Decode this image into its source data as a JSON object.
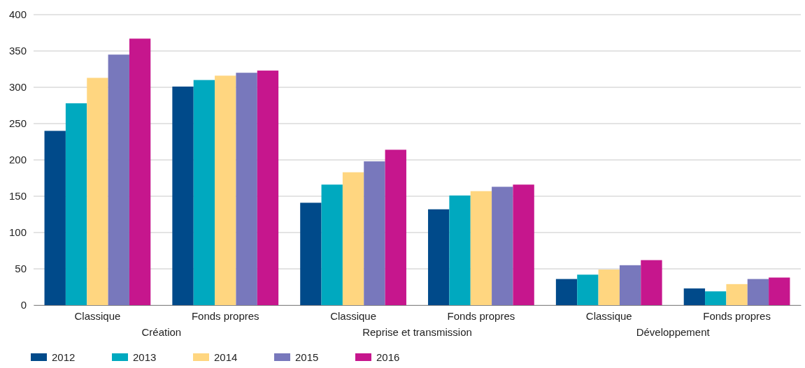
{
  "chart_data": {
    "type": "bar",
    "categories": [
      "Classique",
      "Fonds propres",
      "Classique",
      "Fonds propres",
      "Classique",
      "Fonds propres"
    ],
    "series": [
      {
        "name": "2012",
        "color": "#004a8a",
        "values": [
          240,
          301,
          141,
          132,
          36,
          23
        ]
      },
      {
        "name": "2013",
        "color": "#00a9bf",
        "values": [
          278,
          310,
          166,
          151,
          42,
          19
        ]
      },
      {
        "name": "2014",
        "color": "#ffd680",
        "values": [
          313,
          316,
          183,
          157,
          49,
          29
        ]
      },
      {
        "name": "2015",
        "color": "#7878bc",
        "values": [
          345,
          320,
          198,
          163,
          55,
          36
        ]
      },
      {
        "name": "2016",
        "color": "#c6168d",
        "values": [
          367,
          323,
          214,
          166,
          62,
          38
        ]
      }
    ],
    "annotations": [
      "Création",
      "Reprise et transmission",
      "Développement"
    ],
    "ylim": [
      0,
      400
    ],
    "yticks": [
      0,
      50,
      100,
      150,
      200,
      250,
      300,
      350,
      400
    ],
    "grid": "y",
    "legend": "bottom left"
  }
}
